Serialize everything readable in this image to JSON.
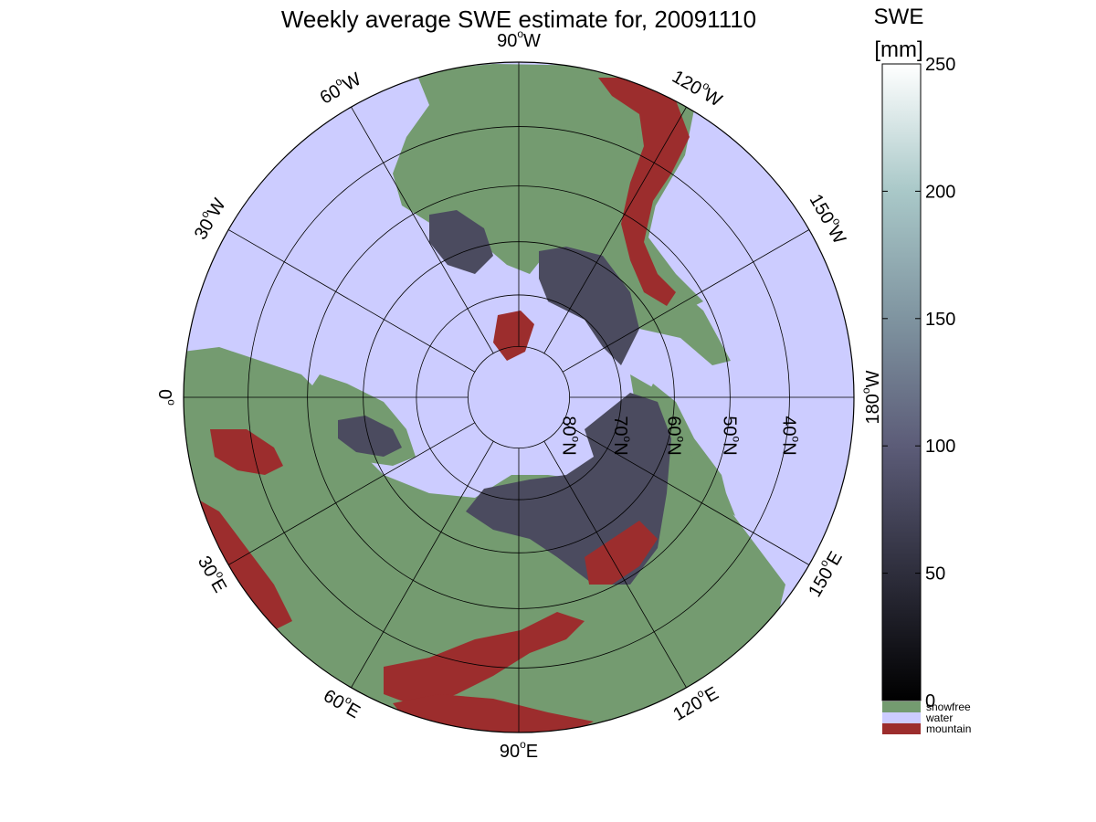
{
  "title": "Weekly average SWE estimate for, 20091110",
  "colorbar": {
    "title_line1": "SWE",
    "title_line2": "[mm]",
    "ticks": [
      "0",
      "50",
      "100",
      "150",
      "200",
      "250"
    ],
    "tick_values": [
      0,
      50,
      100,
      150,
      200,
      250
    ],
    "min": 0,
    "max": 250,
    "gradient": [
      "#000000",
      "#2e2e3c",
      "#5c5c78",
      "#7f94a0",
      "#a9c8c8",
      "#ffffff"
    ],
    "categories": [
      {
        "label": "snowfree",
        "color": "#749b70"
      },
      {
        "label": "water",
        "color": "#ccccff"
      },
      {
        "label": "mountain",
        "color": "#9c2d2d"
      }
    ]
  },
  "map": {
    "projection": "north polar stereographic",
    "ocean_color": "#ccccff",
    "land_color": "#749b70",
    "mountain_color": "#9c2d2d",
    "snow_color": "#4b4b5f",
    "meridian_labels": [
      {
        "lon": -90,
        "label": "90°W",
        "deg": "90",
        "hemi": "W"
      },
      {
        "lon": -120,
        "label": "120°W",
        "deg": "120",
        "hemi": "W"
      },
      {
        "lon": -150,
        "label": "150°W",
        "deg": "150",
        "hemi": "W"
      },
      {
        "lon": 180,
        "label": "180°W",
        "deg": "180",
        "hemi": "W"
      },
      {
        "lon": 150,
        "label": "150°E",
        "deg": "150",
        "hemi": "E"
      },
      {
        "lon": 120,
        "label": "120°E",
        "deg": "120",
        "hemi": "E"
      },
      {
        "lon": 90,
        "label": "90°E",
        "deg": "90",
        "hemi": "E"
      },
      {
        "lon": 60,
        "label": "60°E",
        "deg": "60",
        "hemi": "E"
      },
      {
        "lon": 30,
        "label": "30°E",
        "deg": "30",
        "hemi": "E"
      },
      {
        "lon": 0,
        "label": "0°",
        "deg": "0",
        "hemi": ""
      },
      {
        "lon": -30,
        "label": "30°W",
        "deg": "30",
        "hemi": "W"
      },
      {
        "lon": -60,
        "label": "60°W",
        "deg": "60",
        "hemi": "W"
      }
    ],
    "parallel_labels": [
      {
        "lat": 80,
        "label": "80°N",
        "deg": "80",
        "hemi": "N"
      },
      {
        "lat": 70,
        "label": "70°N",
        "deg": "70",
        "hemi": "N"
      },
      {
        "lat": 60,
        "label": "60°N",
        "deg": "60",
        "hemi": "N"
      },
      {
        "lat": 50,
        "label": "50°N",
        "deg": "50",
        "hemi": "N"
      },
      {
        "lat": 40,
        "label": "40°N",
        "deg": "40",
        "hemi": "N"
      }
    ],
    "parallels": [
      80,
      70,
      60,
      50,
      40
    ],
    "boundary_lat": 30
  }
}
